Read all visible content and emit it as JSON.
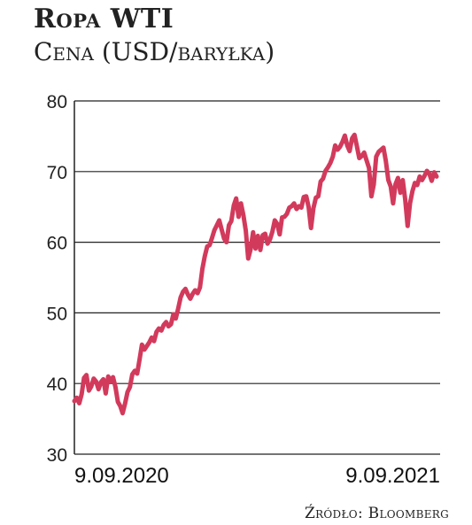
{
  "header": {
    "title": "Ropa WTI",
    "subtitle": "Cena (USD/baryłka)"
  },
  "footer": {
    "source": "Źródło: Bloomberg"
  },
  "colors": {
    "line": "#d23a5c",
    "grid": "#222222",
    "text": "#222222"
  },
  "chart_data": {
    "type": "line",
    "title": "Ropa WTI",
    "subtitle": "Cena (USD/baryłka)",
    "xlabel": "",
    "ylabel": "",
    "ylim": [
      30,
      80
    ],
    "yticks": [
      30,
      40,
      50,
      60,
      70,
      80
    ],
    "xtick_labels": [
      "9.09.2020",
      "9.09.2021"
    ],
    "grid": "horizontal",
    "series": [
      {
        "values": [
          37.5,
          38.0,
          37.2,
          38.5,
          40.8,
          41.2,
          39.0,
          39.6,
          40.7,
          40.3,
          39.2,
          40.2,
          40.6,
          38.6,
          41.0,
          40.3,
          40.9,
          39.5,
          37.4,
          36.8,
          35.8,
          37.2,
          38.8,
          39.5,
          41.3,
          41.8,
          41.4,
          43.4,
          45.5,
          44.8,
          45.3,
          45.8,
          46.5,
          46.0,
          47.3,
          47.8,
          47.5,
          48.3,
          48.7,
          48.1,
          48.4,
          49.8,
          49.2,
          50.6,
          52.2,
          53.0,
          53.4,
          52.6,
          52.0,
          52.7,
          53.2,
          52.8,
          53.6,
          56.2,
          58.0,
          59.4,
          59.6,
          60.6,
          61.7,
          62.4,
          63.1,
          61.8,
          60.5,
          60.0,
          62.4,
          63.0,
          65.2,
          66.2,
          63.6,
          65.5,
          63.8,
          61.6,
          57.7,
          59.0,
          61.4,
          59.1,
          60.9,
          58.9,
          61.0,
          61.2,
          59.8,
          60.4,
          61.5,
          63.1,
          62.6,
          61.1,
          63.5,
          63.6,
          64.0,
          64.9,
          65.1,
          65.5,
          64.7,
          65.1,
          64.9,
          66.4,
          66.5,
          65.0,
          62.0,
          64.8,
          66.3,
          66.5,
          68.6,
          69.0,
          70.1,
          70.6,
          71.2,
          72.1,
          73.7,
          73.1,
          73.5,
          74.2,
          75.1,
          73.7,
          72.9,
          74.7,
          75.2,
          73.6,
          71.9,
          72.2,
          72.7,
          71.6,
          70.5,
          66.5,
          68.2,
          72.1,
          72.8,
          73.1,
          73.4,
          71.5,
          68.8,
          67.9,
          65.5,
          68.2,
          69.1,
          67.0,
          68.8,
          66.0,
          62.3,
          65.5,
          67.2,
          68.4,
          68.1,
          69.3,
          68.8,
          69.4,
          70.1,
          69.7,
          68.7,
          69.9,
          69.3
        ]
      }
    ]
  }
}
